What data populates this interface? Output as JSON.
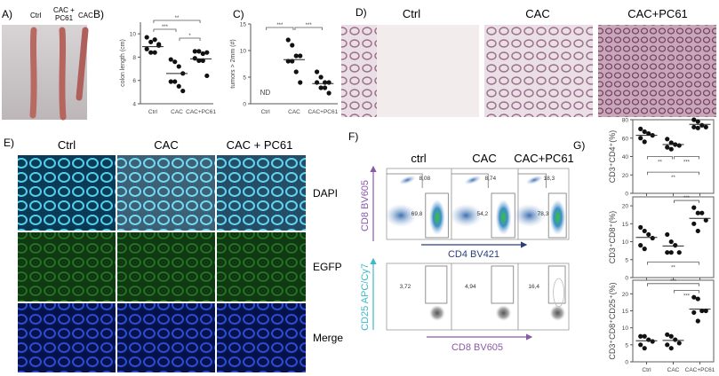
{
  "panels": {
    "A": {
      "letter": "A)",
      "labels": [
        "Ctrl",
        "CAC +",
        "PC61",
        "CAC"
      ]
    },
    "B": {
      "letter": "B)"
    },
    "C": {
      "letter": "C)"
    },
    "D": {
      "letter": "D)",
      "columns": [
        "Ctrl",
        "CAC",
        "CAC+PC61"
      ]
    },
    "E": {
      "letter": "E)",
      "columns": [
        "Ctrl",
        "CAC",
        "CAC + PC61"
      ],
      "rows": [
        "DAPI",
        "EGFP",
        "Merge"
      ]
    },
    "F": {
      "letter": "F)",
      "columns": [
        "ctrl",
        "CAC",
        "CAC+PC61"
      ],
      "top_ylabel": "CD8 BV605",
      "top_xlabel": "CD4 BV421",
      "bottom_ylabel": "CD25 APC/Cy7",
      "bottom_xlabel": "CD8 BV605",
      "cd8_gate": [
        "8,08",
        "8,74",
        "18,3"
      ],
      "cd4_gate": [
        "69,8",
        "54,2",
        "78,3"
      ],
      "cd25_gate": [
        "3,72",
        "4,94",
        "16,4"
      ],
      "axis_color": "#8a5aa8",
      "cd25_color": "#3fb8c8",
      "cd4_color": "#2a3f7a"
    },
    "G": {
      "letter": "G)"
    }
  },
  "chart_data": [
    {
      "id": "B",
      "type": "scatter",
      "ylabel": "colon length (cm)",
      "categories": [
        "Ctrl",
        "CAC",
        "CAC+PC61"
      ],
      "yticks": [
        4,
        6,
        8,
        10
      ],
      "ylim": [
        4,
        11
      ],
      "values": [
        [
          9.7,
          9.3,
          9.5,
          9.0,
          8.7,
          8.4,
          8.4,
          9.1
        ],
        [
          7.8,
          7.6,
          7.2,
          6.6,
          5.9,
          5.9,
          5.5,
          5.1
        ],
        [
          8.5,
          8.5,
          8.3,
          8.4,
          7.9,
          7.7,
          7.7,
          6.4
        ]
      ],
      "medians": [
        8.9,
        6.6,
        7.85
      ],
      "significance": [
        {
          "from": 0,
          "to": 2,
          "label": "**"
        },
        {
          "from": 0,
          "to": 1,
          "label": "***"
        },
        {
          "from": 1,
          "to": 2,
          "label": "*"
        }
      ]
    },
    {
      "id": "C",
      "type": "scatter",
      "ylabel": "tumors > 2mm (#)",
      "categories": [
        "Ctrl",
        "CAC",
        "CAC+PC61"
      ],
      "yticks": [
        0,
        5,
        10,
        15
      ],
      "ylim": [
        0,
        15
      ],
      "values": [
        [],
        [
          12,
          11,
          9,
          9,
          8,
          8,
          6,
          4
        ],
        [
          6,
          5,
          4,
          4,
          4,
          3,
          3,
          2
        ]
      ],
      "medians": [
        null,
        8.3,
        3.8
      ],
      "annotation": "ND",
      "significance": [
        {
          "from": 0,
          "to": 1,
          "label": "***"
        },
        {
          "from": 1,
          "to": 2,
          "label": "***"
        }
      ]
    },
    {
      "id": "G1",
      "type": "scatter",
      "ylabel": "CD3⁺CD4⁺(%)",
      "categories": [
        "Ctrl",
        "CAC",
        "CAC+PC61"
      ],
      "yticks": [
        0,
        20,
        40,
        60,
        80
      ],
      "ylim": [
        0,
        80
      ],
      "values": [
        [
          70,
          67,
          65,
          63,
          60,
          56
        ],
        [
          59,
          55,
          53,
          52,
          50,
          48
        ],
        [
          80,
          78,
          74,
          72,
          72,
          71
        ]
      ],
      "medians": [
        63,
        53,
        75
      ],
      "significance": [
        {
          "from": 0,
          "to": 1,
          "label": "**",
          "y": 40
        },
        {
          "from": 1,
          "to": 2,
          "label": "***",
          "y": 40
        },
        {
          "from": 0,
          "to": 2,
          "label": "**",
          "y": 23
        }
      ]
    },
    {
      "id": "G2",
      "type": "scatter",
      "ylabel": "CD3⁺CD8⁺(%)",
      "categories": [
        "Ctrl",
        "CAC",
        "CAC+PC61"
      ],
      "yticks": [
        0,
        5,
        10,
        15,
        20
      ],
      "ylim": [
        0,
        22.5
      ],
      "values": [
        [
          14,
          13,
          12,
          11,
          9,
          8
        ],
        [
          12,
          10,
          9,
          7,
          7,
          7
        ],
        [
          19.5,
          18,
          18,
          16,
          15,
          13
        ]
      ],
      "medians": [
        11.2,
        8.8,
        16.5
      ],
      "significance": [
        {
          "from": 1,
          "to": 2,
          "label": "***",
          "y": 21.5
        },
        {
          "from": 0,
          "to": 2,
          "label": "**",
          "y": 4.3
        }
      ]
    },
    {
      "id": "G3",
      "type": "scatter",
      "ylabel": "CD3⁺CD8⁺CD25⁺(%)",
      "categories": [
        "Ctrl",
        "CAC",
        "CAC+PC61"
      ],
      "yticks": [
        0,
        5,
        10,
        15,
        20
      ],
      "ylim": [
        0,
        24
      ],
      "values": [
        [
          7.5,
          7.5,
          6.5,
          6,
          5,
          4
        ],
        [
          8,
          7.5,
          6.5,
          5.5,
          5,
          4
        ],
        [
          19,
          18.5,
          15,
          15,
          14.5,
          12
        ]
      ],
      "medians": [
        6.2,
        6.3,
        15.5
      ],
      "significance": [
        {
          "from": 0,
          "to": 2,
          "label": "***",
          "y": 23
        },
        {
          "from": 1,
          "to": 2,
          "label": "***",
          "y": 21
        }
      ]
    }
  ]
}
